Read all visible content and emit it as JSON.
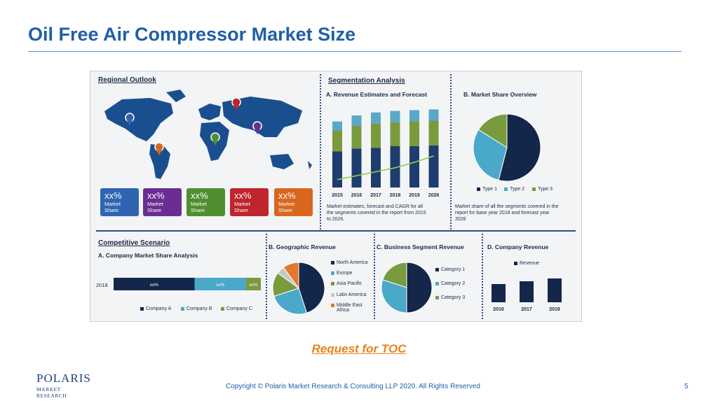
{
  "slide": {
    "title": "Oil Free Air Compressor Market Size",
    "request_toc": "Request for TOC",
    "copyright": "Copyright © Polaris Market Research & Consulting LLP 2020. All Rights Reserved",
    "page_number": "5",
    "logo": {
      "word": "POLARIS",
      "sub": "MARKET RESEARCH"
    }
  },
  "regional": {
    "title": "Regional Outlook",
    "shares": [
      {
        "pct": "xx%",
        "label1": "Market",
        "label2": "Share",
        "color": "#2f64b1"
      },
      {
        "pct": "xx%",
        "label1": "Market",
        "label2": "Share",
        "color": "#6a2d91"
      },
      {
        "pct": "xx%",
        "label1": "Market",
        "label2": "Share",
        "color": "#4f8f2f"
      },
      {
        "pct": "xx%",
        "label1": "Market",
        "label2": "Share",
        "color": "#c0242c"
      },
      {
        "pct": "xx%",
        "label1": "Market",
        "label2": "Share",
        "color": "#d9661f"
      }
    ]
  },
  "segmentation": {
    "title": "Segmentation Analysis",
    "a_title": "A. Revenue Estimates and Forecast",
    "a_desc": [
      "Market estimates, forecast and CAGR for all",
      "the segments covered in the report from 2015",
      "to 2026."
    ],
    "b_title": "B. Market Share Overview",
    "b_desc": [
      "Market share of all the segments covered in the",
      "report for base year 2018 and forecast year",
      "2026"
    ]
  },
  "competitive": {
    "title": "Competitive Scenario",
    "a_title": "A. Company Market Share Analysis",
    "b_title": "B. Geographic Revenue",
    "c_title": "C. Business Segment Revenue",
    "d_title": "D. Company Revenue"
  },
  "chart_data": [
    {
      "type": "bar",
      "title": "A. Revenue Estimates and Forecast",
      "categories": [
        "2015",
        "2016",
        "2017",
        "2018",
        "2019",
        "2026"
      ],
      "series": [
        {
          "values": [
            48,
            52,
            53,
            55,
            55,
            56
          ],
          "color": "#1e3d6e"
        },
        {
          "values": [
            28,
            30,
            32,
            32,
            33,
            33
          ],
          "color": "#7a9a3e"
        },
        {
          "values": [
            12,
            14,
            15,
            15,
            15,
            15
          ],
          "color": "#5aa7c8"
        }
      ],
      "ylim": [
        0,
        110
      ],
      "trend": [
        10,
        15,
        20,
        25,
        32,
        40
      ]
    },
    {
      "type": "pie",
      "title": "B. Market Share Overview",
      "labels": [
        "Type 1",
        "Type 2",
        "Type 3"
      ],
      "values": [
        54,
        30,
        16
      ],
      "colors": [
        "#14264a",
        "#4aa9c8",
        "#7a9a3e"
      ]
    },
    {
      "type": "bar",
      "orientation": "horizontal",
      "stacked": true,
      "title": "A. Company Market Share Analysis",
      "categories": [
        "2018"
      ],
      "series": [
        {
          "name": "Company A",
          "values": [
            55
          ],
          "label": "xx%",
          "color": "#14264a"
        },
        {
          "name": "Company B",
          "values": [
            35
          ],
          "label": "xx%",
          "color": "#4aa9c8"
        },
        {
          "name": "Company C",
          "values": [
            10
          ],
          "label": "xx%",
          "color": "#7a9a3e"
        }
      ]
    },
    {
      "type": "pie",
      "title": "B. Geographic Revenue",
      "labels": [
        "North America",
        "Europe",
        "Asia Pacific",
        "Latin America",
        "Middle East Africa"
      ],
      "legend_display": [
        "North America",
        "Europe",
        "Asia Pacific",
        "Latin America",
        "Middle East|Africa"
      ],
      "values": [
        45,
        25,
        15,
        5,
        10
      ],
      "colors": [
        "#14264a",
        "#4aa9c8",
        "#7a9a3e",
        "#c8c8c8",
        "#e07a2a"
      ]
    },
    {
      "type": "pie",
      "title": "C. Business Segment Revenue",
      "labels": [
        "Category 1",
        "Category 2",
        "Category 3"
      ],
      "values": [
        50,
        30,
        20
      ],
      "colors": [
        "#14264a",
        "#4aa9c8",
        "#7a9a3e"
      ]
    },
    {
      "type": "bar",
      "title": "D. Company Revenue",
      "categories": [
        "2016",
        "2017",
        "2018"
      ],
      "series": [
        {
          "name": "Revenue",
          "values": [
            65,
            75,
            85
          ],
          "color": "#14264a"
        }
      ],
      "ylim": [
        0,
        100
      ]
    }
  ]
}
